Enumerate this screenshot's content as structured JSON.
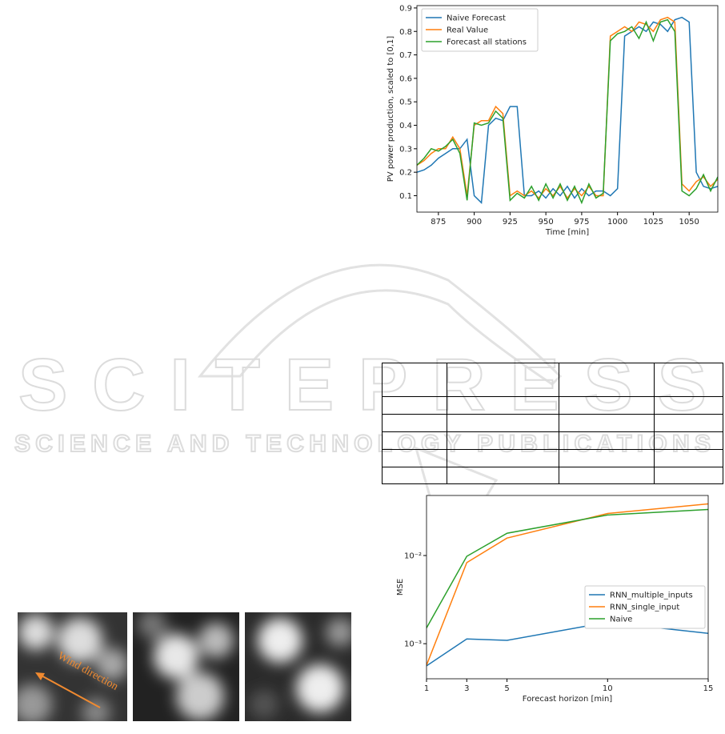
{
  "chart_data": [
    {
      "type": "line",
      "xlabel": "Time [min]",
      "ylabel": "PV power production, scaled to [0,1]",
      "x": [
        860,
        865,
        870,
        875,
        880,
        885,
        890,
        895,
        900,
        905,
        910,
        915,
        920,
        925,
        930,
        935,
        940,
        945,
        950,
        955,
        960,
        965,
        970,
        975,
        980,
        985,
        990,
        995,
        1000,
        1005,
        1010,
        1015,
        1020,
        1025,
        1030,
        1035,
        1040,
        1045,
        1050,
        1055,
        1060,
        1065,
        1070
      ],
      "series": [
        {
          "name": "Naive Forecast",
          "color": "#1f77b4",
          "values": [
            0.2,
            0.21,
            0.23,
            0.26,
            0.28,
            0.3,
            0.3,
            0.34,
            0.1,
            0.07,
            0.4,
            0.43,
            0.42,
            0.48,
            0.48,
            0.1,
            0.1,
            0.12,
            0.09,
            0.13,
            0.1,
            0.14,
            0.09,
            0.13,
            0.1,
            0.12,
            0.12,
            0.1,
            0.13,
            0.78,
            0.8,
            0.82,
            0.8,
            0.84,
            0.83,
            0.8,
            0.85,
            0.86,
            0.84,
            0.2,
            0.14,
            0.13,
            0.14
          ]
        },
        {
          "name": "Real Value",
          "color": "#ff7f0e",
          "values": [
            0.23,
            0.25,
            0.28,
            0.3,
            0.3,
            0.35,
            0.3,
            0.1,
            0.4,
            0.42,
            0.42,
            0.48,
            0.45,
            0.1,
            0.12,
            0.1,
            0.12,
            0.09,
            0.13,
            0.1,
            0.14,
            0.09,
            0.13,
            0.1,
            0.14,
            0.1,
            0.1,
            0.78,
            0.8,
            0.82,
            0.8,
            0.84,
            0.83,
            0.8,
            0.85,
            0.86,
            0.84,
            0.15,
            0.12,
            0.16,
            0.18,
            0.14,
            0.17
          ]
        },
        {
          "name": "Forecast all stations",
          "color": "#2ca02c",
          "values": [
            0.23,
            0.26,
            0.3,
            0.29,
            0.31,
            0.34,
            0.28,
            0.08,
            0.41,
            0.4,
            0.41,
            0.46,
            0.43,
            0.08,
            0.11,
            0.09,
            0.14,
            0.08,
            0.15,
            0.09,
            0.15,
            0.08,
            0.14,
            0.07,
            0.15,
            0.09,
            0.11,
            0.76,
            0.79,
            0.8,
            0.82,
            0.77,
            0.84,
            0.76,
            0.84,
            0.85,
            0.8,
            0.12,
            0.1,
            0.13,
            0.19,
            0.12,
            0.18
          ]
        }
      ],
      "xlim": [
        860,
        1070
      ],
      "ylim": [
        0.03,
        0.91
      ],
      "xticks": [
        875,
        900,
        925,
        950,
        975,
        1000,
        1025,
        1050
      ],
      "yticks": [
        0.1,
        0.2,
        0.3,
        0.4,
        0.5,
        0.6,
        0.7,
        0.8,
        0.9
      ],
      "legend": "upper left"
    },
    {
      "type": "line",
      "xlabel": "Forecast horizon [min]",
      "ylabel": "MSE",
      "log_y": true,
      "x": [
        1,
        3,
        5,
        10,
        15
      ],
      "series": [
        {
          "name": "RNN_multiple_inputs",
          "color": "#1f77b4",
          "values": [
            0.00056,
            0.00113,
            0.00109,
            0.00175,
            0.00131
          ]
        },
        {
          "name": "RNN_single_input",
          "color": "#ff7f0e",
          "values": [
            0.00057,
            0.0083,
            0.0158,
            0.03,
            0.0385
          ]
        },
        {
          "name": "Naive",
          "color": "#2ca02c",
          "values": [
            0.00151,
            0.0098,
            0.0179,
            0.0288,
            0.0333
          ]
        }
      ],
      "xlim": [
        1,
        15
      ],
      "ylim": [
        0.0004,
        0.048
      ],
      "xticks": [
        1,
        3,
        5,
        10,
        15
      ],
      "yticks": [
        {
          "value": 0.01,
          "label": "10⁻²"
        },
        {
          "value": 0.001,
          "label": "10⁻³"
        }
      ],
      "legend": "center right"
    }
  ],
  "image": {
    "annotation": "Wind direction"
  },
  "watermark": {
    "title": "SCITEPRESS",
    "subtitle": "SCIENCE AND TECHNOLOGY PUBLICATIONS"
  }
}
